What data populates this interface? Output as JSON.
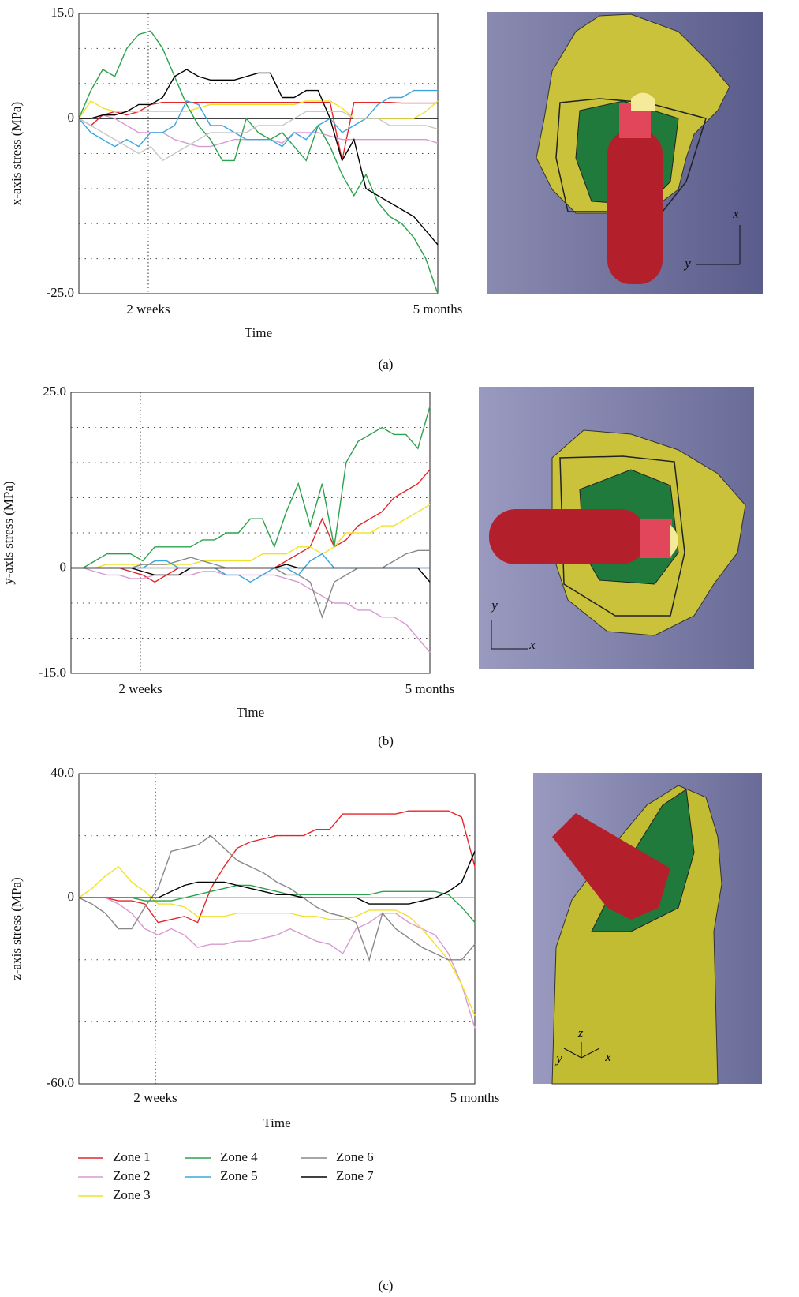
{
  "chart_data": [
    {
      "type": "line",
      "panel": "(a)",
      "ylabel": "x-axis stress (MPa)",
      "xlabel": "Time",
      "x": [
        0,
        1,
        2,
        3,
        4,
        5,
        6,
        7,
        8,
        9,
        10,
        11,
        12,
        13,
        14,
        15,
        16,
        17,
        18,
        19,
        20,
        21,
        22,
        23,
        24,
        25,
        26,
        27,
        28,
        29,
        30
      ],
      "xlim": [
        0,
        30
      ],
      "xticks": [
        {
          "value": 5.8,
          "label": "2 weeks"
        },
        {
          "value": 30,
          "label": "5 months"
        }
      ],
      "ylim": [
        -25,
        15
      ],
      "yticks": [
        {
          "value": 15,
          "label": "15.0"
        },
        0,
        {
          "value": -25,
          "label": "-25.0"
        }
      ],
      "ygrid": [
        10,
        5,
        -5,
        -10,
        -15,
        -20
      ],
      "series": [
        {
          "color": "#e4262a",
          "values": [
            0,
            -1,
            0.5,
            1,
            0.5,
            1,
            2,
            2.3,
            2.3,
            2.3,
            2.3,
            2.3,
            2.3,
            2.3,
            2.3,
            2.3,
            2.3,
            2.3,
            2.3,
            2.3,
            2.3,
            2.3,
            -6,
            2.3,
            2.3,
            2.3,
            2.3,
            2.2,
            2.2,
            2.2,
            2.2
          ]
        },
        {
          "color": "#d89ad0",
          "values": [
            0,
            0,
            0.5,
            0,
            -1,
            -2,
            -2,
            -2,
            -3,
            -3.5,
            -4,
            -4,
            -3.5,
            -3,
            -3,
            -3,
            -3,
            -3.5,
            -2,
            -2,
            -2,
            -2.5,
            -3,
            -3,
            -3,
            -3,
            -3,
            -3,
            -3,
            -3,
            -3.5
          ]
        },
        {
          "color": "#f0e22a",
          "values": [
            0,
            2.5,
            1.5,
            1,
            1,
            1,
            1,
            1,
            1,
            1,
            1.5,
            2,
            2,
            2,
            2,
            2,
            2,
            2,
            2,
            2.5,
            2.5,
            2.5,
            1.5,
            0,
            0,
            0,
            0,
            0,
            0,
            1,
            2.5
          ]
        },
        {
          "color": "#2ba24c",
          "values": [
            0,
            4,
            7,
            6,
            10,
            12,
            12.5,
            10,
            6,
            2,
            -1,
            -3,
            -6,
            -6,
            0,
            -2,
            -3,
            -2,
            -4,
            -6,
            -1,
            -4,
            -8,
            -11,
            -8,
            -12,
            -14,
            -15,
            -17,
            -20,
            -25
          ]
        },
        {
          "color": "#3aa6e0",
          "values": [
            0,
            -2,
            -3,
            -4,
            -3,
            -4,
            -2,
            -2,
            -1,
            2.5,
            2,
            -1,
            -1,
            -2,
            -3,
            -3,
            -3,
            -4,
            -2,
            -3,
            -1,
            0,
            -2,
            -1,
            0,
            2,
            3,
            3,
            4,
            4,
            4
          ]
        },
        {
          "color": "#c8c8c8",
          "values": [
            0,
            -1,
            -2,
            -3,
            -4,
            -5,
            -4,
            -6,
            -5,
            -4,
            -3,
            -2,
            -2,
            -2,
            -2,
            -1,
            -1,
            -1,
            0,
            1,
            1,
            1,
            1,
            0,
            0,
            0,
            -1,
            -1,
            -1,
            -1,
            -1.5
          ]
        },
        {
          "color": "#000000",
          "values": [
            0,
            0,
            0.5,
            0.5,
            1,
            2,
            2,
            3,
            6,
            7,
            6,
            5.5,
            5.5,
            5.5,
            6,
            6.5,
            6.5,
            3,
            3,
            4,
            4,
            0,
            -6,
            -3,
            -10,
            -11,
            -12,
            -13,
            -14,
            -16,
            -18
          ]
        }
      ]
    },
    {
      "type": "line",
      "panel": "(b)",
      "ylabel": "y-axis stress (MPa)",
      "xlabel": "Time",
      "x": [
        0,
        1,
        2,
        3,
        4,
        5,
        6,
        7,
        8,
        9,
        10,
        11,
        12,
        13,
        14,
        15,
        16,
        17,
        18,
        19,
        20,
        21,
        22,
        23,
        24,
        25,
        26,
        27,
        28,
        29,
        30
      ],
      "xlim": [
        0,
        30
      ],
      "xticks": [
        {
          "value": 5.8,
          "label": "2 weeks"
        },
        {
          "value": 30,
          "label": "5 months"
        }
      ],
      "ylim": [
        -15,
        25
      ],
      "yticks": [
        {
          "value": 25,
          "label": "25.0"
        },
        0,
        {
          "value": -15,
          "label": "-15.0"
        }
      ],
      "ygrid": [
        20,
        15,
        10,
        5,
        -5,
        -10
      ],
      "series": [
        {
          "color": "#e4262a",
          "values": [
            0,
            0,
            0,
            0,
            0,
            -0.5,
            -1,
            -2,
            -1,
            0,
            0,
            0,
            0,
            0,
            0,
            0,
            0,
            0,
            1,
            2,
            3,
            7,
            3,
            4,
            6,
            7,
            8,
            10,
            11,
            12,
            14
          ]
        },
        {
          "color": "#d89ad0",
          "values": [
            0,
            0,
            -0.5,
            -1,
            -1,
            -1.5,
            -1.5,
            -1,
            -1,
            -1,
            -1,
            -0.5,
            -0.5,
            -1,
            -1,
            -1,
            -1,
            -1,
            -1.5,
            -2,
            -3,
            -4,
            -5,
            -5,
            -6,
            -6,
            -7,
            -7,
            -8,
            -10,
            -12
          ]
        },
        {
          "color": "#f0e22a",
          "values": [
            0,
            0,
            0,
            0.5,
            0.5,
            0.5,
            0.5,
            0.5,
            0.5,
            0.5,
            0.5,
            1,
            1,
            1,
            1,
            1,
            2,
            2,
            2,
            3,
            3,
            2,
            3,
            5,
            5,
            5,
            6,
            6,
            7,
            8,
            9
          ]
        },
        {
          "color": "#2ba24c",
          "values": [
            0,
            0,
            1,
            2,
            2,
            2,
            1,
            3,
            3,
            3,
            3,
            4,
            4,
            5,
            5,
            7,
            7,
            3,
            8,
            12,
            6,
            12,
            3,
            15,
            18,
            19,
            20,
            19,
            19,
            17,
            23
          ]
        },
        {
          "color": "#3aa6e0",
          "values": [
            0,
            0,
            0,
            0,
            0,
            0,
            0,
            1,
            1,
            0,
            0,
            0,
            0,
            -1,
            -1,
            -2,
            -1,
            0,
            0,
            -1,
            1,
            2,
            0,
            0,
            0,
            0,
            0,
            0,
            0,
            0,
            0
          ]
        },
        {
          "color": "#888888",
          "values": [
            0,
            0,
            0,
            0,
            0,
            0,
            0.5,
            0.5,
            0.5,
            1,
            1.5,
            1,
            0.5,
            0,
            0,
            0,
            0,
            0,
            -1,
            -1,
            -2,
            -7,
            -2,
            -1,
            0,
            0,
            0,
            1,
            2,
            2.5,
            2.5
          ]
        },
        {
          "color": "#000000",
          "values": [
            0,
            0,
            0,
            0,
            0,
            0,
            -0.5,
            -1,
            -1,
            -1,
            0,
            0,
            0,
            0,
            0,
            0,
            0,
            0,
            0.5,
            0,
            0,
            0,
            0,
            0,
            0,
            0,
            0,
            0,
            0,
            0,
            -2
          ]
        }
      ]
    },
    {
      "type": "line",
      "panel": "(c)",
      "ylabel": "z-axis stress (MPa)",
      "xlabel": "Time",
      "x": [
        0,
        1,
        2,
        3,
        4,
        5,
        6,
        7,
        8,
        9,
        10,
        11,
        12,
        13,
        14,
        15,
        16,
        17,
        18,
        19,
        20,
        21,
        22,
        23,
        24,
        25,
        26,
        27,
        28,
        29,
        30
      ],
      "xlim": [
        0,
        30
      ],
      "xticks": [
        {
          "value": 5.8,
          "label": "2 weeks"
        },
        {
          "value": 30,
          "label": "5 months"
        }
      ],
      "ylim": [
        -60,
        40
      ],
      "yticks": [
        {
          "value": 40,
          "label": "40.0"
        },
        0,
        {
          "value": -60,
          "label": "-60.0"
        }
      ],
      "ygrid": [
        20,
        -20,
        -40
      ],
      "series": [
        {
          "color": "#e4262a",
          "values": [
            0,
            0,
            0,
            -1,
            -1,
            -2,
            -8,
            -7,
            -6,
            -8,
            3,
            10,
            16,
            18,
            19,
            20,
            20,
            20,
            22,
            22,
            27,
            27,
            27,
            27,
            27,
            28,
            28,
            28,
            28,
            26,
            10
          ]
        },
        {
          "color": "#d89ad0",
          "values": [
            0,
            0,
            0,
            -2,
            -5,
            -10,
            -12,
            -10,
            -12,
            -16,
            -15,
            -15,
            -14,
            -14,
            -13,
            -12,
            -10,
            -12,
            -14,
            -15,
            -18,
            -10,
            -8,
            -5,
            -5,
            -8,
            -10,
            -12,
            -18,
            -28,
            -42
          ]
        },
        {
          "color": "#f0e22a",
          "values": [
            0,
            3,
            7,
            10,
            5,
            2,
            -2,
            -2,
            -3,
            -6,
            -6,
            -6,
            -5,
            -5,
            -5,
            -5,
            -5,
            -6,
            -6,
            -7,
            -7,
            -6,
            -4,
            -4,
            -4,
            -6,
            -10,
            -15,
            -20,
            -28,
            -38
          ]
        },
        {
          "color": "#2ba24c",
          "values": [
            0,
            0,
            0,
            0,
            0,
            -1,
            -1,
            -1,
            0,
            1,
            2,
            3,
            4,
            4,
            3,
            2,
            1,
            1,
            1,
            1,
            1,
            1,
            1,
            2,
            2,
            2,
            2,
            2,
            1,
            -3,
            -8
          ]
        },
        {
          "color": "#3aa6e0",
          "values": [
            0,
            0,
            0,
            0,
            0,
            0,
            0,
            0,
            0,
            0,
            0,
            0,
            0,
            0,
            0,
            0,
            0,
            0,
            0,
            0,
            0,
            0,
            0,
            0,
            0,
            0,
            0,
            0,
            0,
            0,
            0
          ]
        },
        {
          "color": "#888888",
          "values": [
            0,
            -2,
            -5,
            -10,
            -10,
            -3,
            3,
            15,
            16,
            17,
            20,
            16,
            12,
            10,
            8,
            5,
            3,
            0,
            -3,
            -5,
            -6,
            -8,
            -20,
            -5,
            -10,
            -13,
            -16,
            -18,
            -20,
            -20,
            -15
          ]
        },
        {
          "color": "#000000",
          "values": [
            0,
            0,
            0,
            0,
            0,
            0,
            0,
            2,
            4,
            5,
            5,
            5,
            4,
            3,
            2,
            1,
            1,
            0,
            0,
            0,
            0,
            0,
            -2,
            -2,
            -2,
            -2,
            -1,
            0,
            2,
            5,
            15
          ]
        }
      ]
    }
  ],
  "legend": [
    {
      "name": "Zone 1",
      "color": "#e4262a"
    },
    {
      "name": "Zone 2",
      "color": "#d89ad0"
    },
    {
      "name": "Zone 3",
      "color": "#f0e22a"
    },
    {
      "name": "Zone 4",
      "color": "#2ba24c"
    },
    {
      "name": "Zone 5",
      "color": "#3aa6e0"
    },
    {
      "name": "Zone 6",
      "color": "#888888"
    },
    {
      "name": "Zone 7",
      "color": "#000000"
    }
  ],
  "renders": [
    {
      "axes": [
        "x",
        "y"
      ]
    },
    {
      "axes": [
        "y",
        "x"
      ]
    },
    {
      "axes": [
        "z",
        "y",
        "x"
      ]
    }
  ]
}
